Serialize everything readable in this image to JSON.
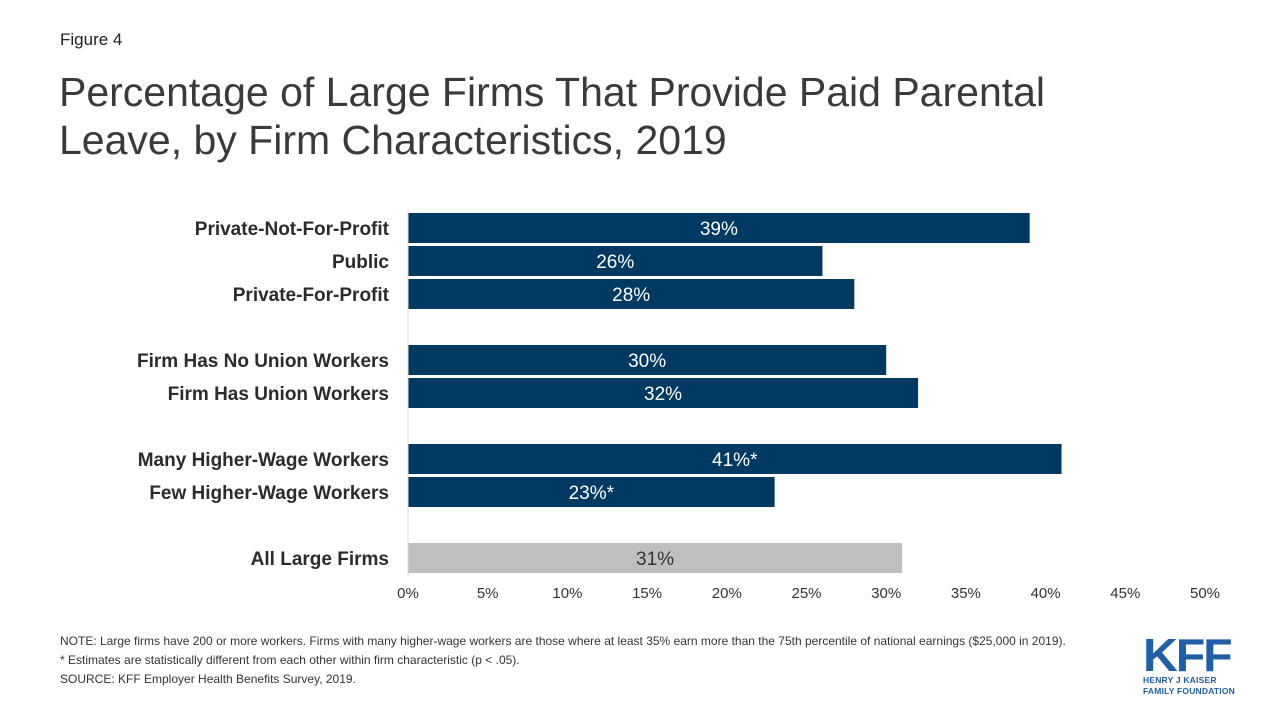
{
  "figure_label": "Figure 4",
  "title": "Percentage of Large Firms That Provide Paid Parental Leave, by Firm Characteristics, 2019",
  "colors": {
    "bar": "#003a63",
    "bar_total": "#bfbfbf",
    "label_on_dark": "#ffffff",
    "label_on_light": "#333333"
  },
  "chart_data": {
    "type": "bar",
    "orientation": "horizontal",
    "categories": [
      "Private-Not-For-Profit",
      "Public",
      "Private-For-Profit",
      "Firm Has No Union Workers",
      "Firm Has Union Workers",
      "Many Higher-Wage Workers",
      "Few Higher-Wage Workers",
      "All Large Firms"
    ],
    "values": [
      39,
      26,
      28,
      30,
      32,
      41,
      23,
      31
    ],
    "data_labels": [
      "39%",
      "26%",
      "28%",
      "30%",
      "32%",
      "41%*",
      "23%*",
      "31%"
    ],
    "groups": [
      0,
      0,
      0,
      1,
      1,
      2,
      2,
      3
    ],
    "xlim": [
      0,
      50
    ],
    "xticks": [
      0,
      5,
      10,
      15,
      20,
      25,
      30,
      35,
      40,
      45,
      50
    ],
    "xtick_labels": [
      "0%",
      "5%",
      "10%",
      "15%",
      "20%",
      "25%",
      "30%",
      "35%",
      "40%",
      "45%",
      "50%"
    ],
    "grid": false,
    "legend": "none"
  },
  "notes": {
    "note": "NOTE: Large firms have 200 or more workers. Firms with many higher-wage workers are those where at least 35% earn more than the 75th percentile of national earnings ($25,000 in 2019).",
    "asterisk": "* Estimates are statistically different from each other within firm characteristic (p < .05).",
    "source": "SOURCE: KFF Employer Health Benefits Survey, 2019."
  },
  "logo": {
    "mark": "KFF",
    "line1": "HENRY J KAISER",
    "line2": "FAMILY FOUNDATION"
  }
}
